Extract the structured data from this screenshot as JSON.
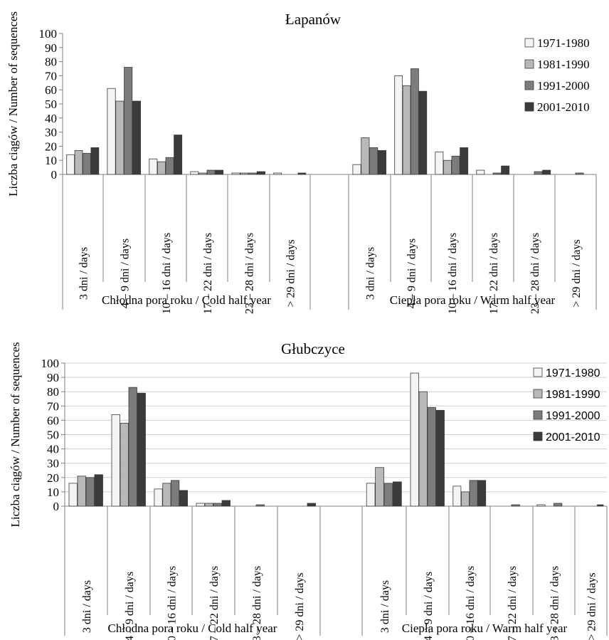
{
  "chart_data": [
    {
      "type": "bar",
      "title": "Łapanów",
      "ylabel": "Liczba ciągów / Number of sequences",
      "ylim": [
        0,
        100
      ],
      "yticks": [
        0,
        10,
        20,
        30,
        40,
        50,
        60,
        70,
        80,
        90,
        100
      ],
      "grid": false,
      "legend_position": "top-right",
      "groups": [
        "Chłodna pora roku / Cold half year",
        "Ciepła pora roku / Warm half year"
      ],
      "categories": [
        "3 dni / days",
        "4 – 9 dni / days",
        "10 – 16 dni / days",
        "17 – 22 dni / days",
        "23 – 28 dni / days",
        "> 29 dni / days"
      ],
      "series": [
        {
          "name": "1971-1980",
          "color": "#f4f4f4",
          "values": [
            [
              14,
              61,
              11,
              2,
              1,
              1
            ],
            [
              7,
              70,
              16,
              3,
              0,
              0
            ]
          ]
        },
        {
          "name": "1981-1990",
          "color": "#b8b8b8",
          "values": [
            [
              17,
              52,
              9,
              1,
              1,
              0
            ],
            [
              26,
              63,
              10,
              0,
              0,
              0
            ]
          ]
        },
        {
          "name": "1991-2000",
          "color": "#7c7c7c",
          "values": [
            [
              15,
              76,
              12,
              3,
              1,
              0
            ],
            [
              19,
              75,
              13,
              1,
              2,
              1
            ]
          ]
        },
        {
          "name": "2001-2010",
          "color": "#3b3b3b",
          "values": [
            [
              19,
              52,
              28,
              3,
              2,
              1
            ],
            [
              17,
              59,
              19,
              6,
              3,
              0
            ]
          ]
        }
      ]
    },
    {
      "type": "bar",
      "title": "Głubczyce",
      "ylabel": "Liczba ciągów / Number of sequences",
      "ylim": [
        0,
        100
      ],
      "yticks": [
        0,
        10,
        20,
        30,
        40,
        50,
        60,
        70,
        80,
        90,
        100
      ],
      "grid": true,
      "legend_position": "top-right",
      "groups": [
        "Chłodna pora roku / Cold half year",
        "Ciepła pora roku / Warm half year"
      ],
      "categories": [
        "3 dni / days",
        "4 – 9 dni / days",
        "10 – 16 dni / days",
        "17 – 22 dni / days",
        "23 – 28 dni / days",
        "> 29 dni / days"
      ],
      "series": [
        {
          "name": "1971-1980",
          "color": "#f4f4f4",
          "values": [
            [
              16,
              64,
              12,
              2,
              0,
              0
            ],
            [
              16,
              93,
              14,
              0,
              1,
              0
            ]
          ]
        },
        {
          "name": "1981-1990",
          "color": "#b8b8b8",
          "values": [
            [
              21,
              58,
              16,
              2,
              0,
              0
            ],
            [
              27,
              80,
              10,
              0,
              0,
              0
            ]
          ]
        },
        {
          "name": "1991-2000",
          "color": "#7c7c7c",
          "values": [
            [
              20,
              83,
              18,
              2,
              1,
              0
            ],
            [
              16,
              69,
              18,
              1,
              2,
              0
            ]
          ]
        },
        {
          "name": "2001-2010",
          "color": "#3b3b3b",
          "values": [
            [
              22,
              79,
              11,
              4,
              0,
              2
            ],
            [
              17,
              67,
              18,
              0,
              0,
              1
            ]
          ]
        }
      ]
    }
  ]
}
